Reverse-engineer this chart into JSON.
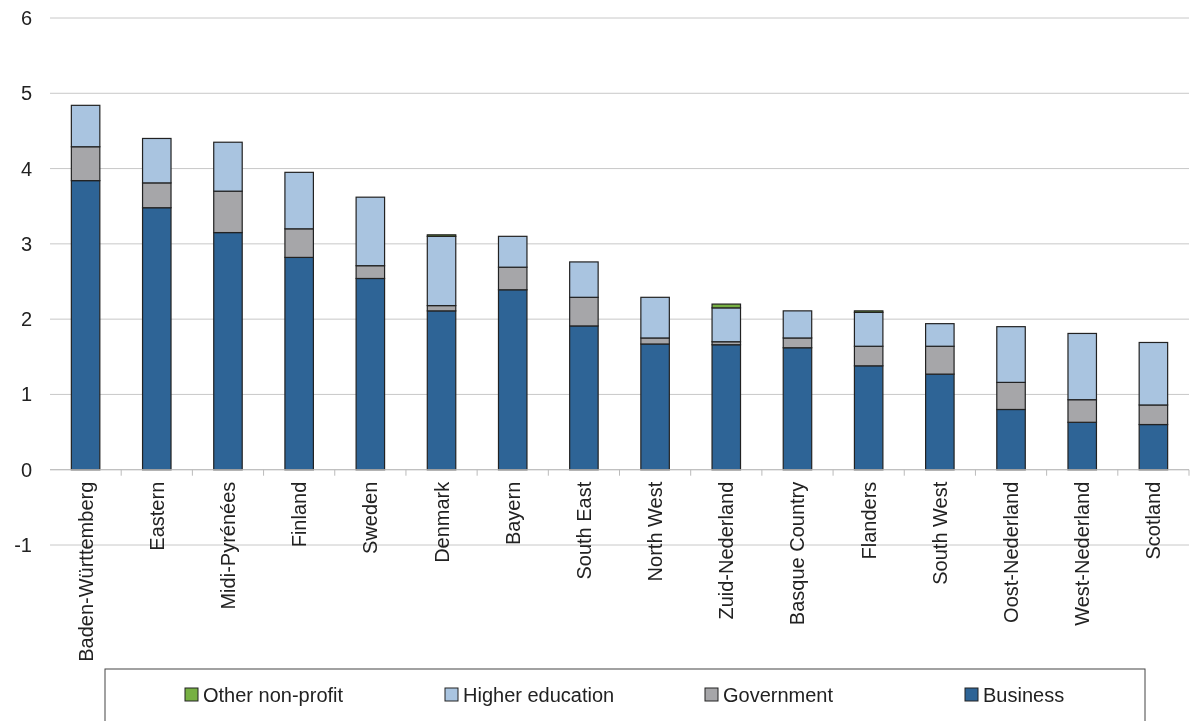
{
  "chart_data": {
    "type": "bar",
    "stacked": true,
    "categories": [
      "Baden-Württemberg",
      "Eastern",
      "Midi-Pyrénées",
      "Finland",
      "Sweden",
      "Denmark",
      "Bayern",
      "South East",
      "North West",
      "Zuid-Nederland",
      "Basque Country",
      "Flanders",
      "South West",
      "Oost-Nederland",
      "West-Nederland",
      "Scotland"
    ],
    "series": [
      {
        "name": "Business",
        "color": "#2e6496",
        "values": [
          3.84,
          3.48,
          3.15,
          2.82,
          2.54,
          2.11,
          2.39,
          1.91,
          1.67,
          1.66,
          1.62,
          1.38,
          1.27,
          0.8,
          0.63,
          0.6
        ]
      },
      {
        "name": "Government",
        "color": "#a6a6a9",
        "values": [
          0.45,
          0.33,
          0.55,
          0.38,
          0.17,
          0.07,
          0.3,
          0.38,
          0.08,
          0.04,
          0.13,
          0.26,
          0.37,
          0.36,
          0.3,
          0.26
        ]
      },
      {
        "name": "Higher education",
        "color": "#a9c4e0",
        "values": [
          0.55,
          0.59,
          0.65,
          0.75,
          0.91,
          0.92,
          0.41,
          0.47,
          0.54,
          0.45,
          0.36,
          0.45,
          0.3,
          0.74,
          0.88,
          0.83
        ]
      },
      {
        "name": "Other non-profit",
        "color": "#77b043",
        "values": [
          null,
          null,
          null,
          null,
          null,
          0.02,
          null,
          null,
          null,
          0.05,
          null,
          0.02,
          null,
          null,
          null,
          null
        ]
      }
    ],
    "ylim": [
      -1,
      6
    ],
    "yticks": [
      -1,
      0,
      1,
      2,
      3,
      4,
      5,
      6
    ],
    "grid": "y",
    "legend": "bottom"
  }
}
